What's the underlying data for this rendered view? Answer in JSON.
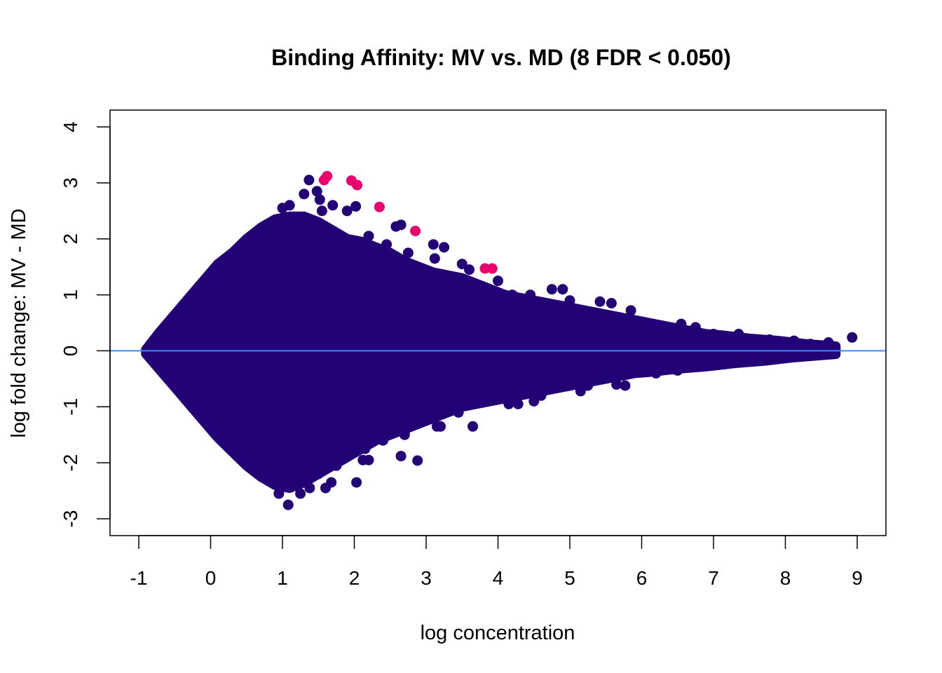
{
  "chart_data": {
    "type": "scatter",
    "title": "Binding Affinity: MV vs. MD (8 FDR < 0.050)",
    "xlabel": "log concentration",
    "ylabel": "log fold change: MV - MD",
    "xlim": [
      -1.4,
      9.4
    ],
    "ylim": [
      -3.3,
      4.3
    ],
    "x_ticks": [
      -1,
      0,
      1,
      2,
      3,
      4,
      5,
      6,
      7,
      8,
      9
    ],
    "y_ticks": [
      -3,
      -2,
      -1,
      0,
      1,
      2,
      3,
      4
    ],
    "reference_line_y": 0,
    "grid": false,
    "legend": "none",
    "colors": {
      "background_points": "#240076",
      "significant_points": "#e8006e",
      "reference_line": "#3b8cff",
      "axes": "#000000"
    },
    "envelope": {
      "x": [
        -0.9,
        -0.7,
        -0.5,
        -0.3,
        -0.1,
        0.1,
        0.3,
        0.5,
        0.7,
        0.9,
        1.1,
        1.3,
        1.5,
        1.7,
        1.9,
        2.1,
        2.3,
        2.5,
        2.7,
        2.9,
        3.1,
        3.3,
        3.5,
        3.7,
        3.9,
        4.1,
        4.3,
        4.5,
        4.7,
        4.9,
        5.1,
        5.3,
        5.5,
        5.7,
        5.9,
        6.1,
        6.3,
        6.5,
        6.7,
        6.9,
        7.1,
        7.3,
        7.5,
        7.7,
        7.9,
        8.1,
        8.3,
        8.5,
        8.7
      ],
      "upper": [
        0.02,
        0.35,
        0.65,
        0.95,
        1.25,
        1.55,
        1.75,
        2.0,
        2.2,
        2.35,
        2.4,
        2.4,
        2.3,
        2.15,
        2.0,
        1.95,
        1.85,
        1.75,
        1.6,
        1.5,
        1.4,
        1.35,
        1.3,
        1.2,
        1.1,
        1.0,
        0.95,
        0.9,
        0.85,
        0.8,
        0.75,
        0.7,
        0.65,
        0.6,
        0.55,
        0.5,
        0.45,
        0.4,
        0.35,
        0.3,
        0.28,
        0.25,
        0.22,
        0.2,
        0.18,
        0.15,
        0.12,
        0.1,
        0.08
      ],
      "lower": [
        -0.05,
        -0.35,
        -0.65,
        -0.95,
        -1.25,
        -1.55,
        -1.8,
        -2.05,
        -2.25,
        -2.4,
        -2.45,
        -2.35,
        -2.2,
        -2.05,
        -1.9,
        -1.75,
        -1.6,
        -1.5,
        -1.4,
        -1.3,
        -1.2,
        -1.1,
        -1.0,
        -0.95,
        -0.9,
        -0.85,
        -0.8,
        -0.75,
        -0.7,
        -0.65,
        -0.6,
        -0.55,
        -0.5,
        -0.45,
        -0.4,
        -0.38,
        -0.35,
        -0.32,
        -0.3,
        -0.28,
        -0.25,
        -0.22,
        -0.2,
        -0.18,
        -0.15,
        -0.12,
        -0.1,
        -0.08,
        -0.06
      ]
    },
    "points": [
      {
        "x": -0.87,
        "y": -0.02
      },
      {
        "x": 1.37,
        "y": 3.05
      },
      {
        "x": 1.48,
        "y": 2.85
      },
      {
        "x": 1.52,
        "y": 2.7
      },
      {
        "x": 1.3,
        "y": 2.8
      },
      {
        "x": 1.1,
        "y": 2.6
      },
      {
        "x": 1.0,
        "y": 2.55
      },
      {
        "x": 1.55,
        "y": 2.5
      },
      {
        "x": 1.7,
        "y": 2.6
      },
      {
        "x": 1.9,
        "y": 2.5
      },
      {
        "x": 2.02,
        "y": 2.58
      },
      {
        "x": 2.2,
        "y": 2.05
      },
      {
        "x": 2.45,
        "y": 1.9
      },
      {
        "x": 2.58,
        "y": 2.22
      },
      {
        "x": 2.65,
        "y": 2.25
      },
      {
        "x": 2.75,
        "y": 1.75
      },
      {
        "x": 3.1,
        "y": 1.9
      },
      {
        "x": 3.25,
        "y": 1.85
      },
      {
        "x": 3.12,
        "y": 1.65
      },
      {
        "x": 3.5,
        "y": 1.55
      },
      {
        "x": 3.6,
        "y": 1.45
      },
      {
        "x": 4.0,
        "y": 1.25
      },
      {
        "x": 4.2,
        "y": 1.0
      },
      {
        "x": 4.45,
        "y": 1.0
      },
      {
        "x": 4.75,
        "y": 1.1
      },
      {
        "x": 4.9,
        "y": 1.1
      },
      {
        "x": 5.0,
        "y": 0.9
      },
      {
        "x": 5.42,
        "y": 0.88
      },
      {
        "x": 5.58,
        "y": 0.85
      },
      {
        "x": 5.85,
        "y": 0.72
      },
      {
        "x": 6.55,
        "y": 0.48
      },
      {
        "x": 6.75,
        "y": 0.42
      },
      {
        "x": 7.0,
        "y": 0.3
      },
      {
        "x": 7.35,
        "y": 0.3
      },
      {
        "x": 7.78,
        "y": 0.2
      },
      {
        "x": 7.9,
        "y": 0.15
      },
      {
        "x": 8.12,
        "y": 0.18
      },
      {
        "x": 8.35,
        "y": 0.12
      },
      {
        "x": 8.6,
        "y": 0.15
      },
      {
        "x": 8.65,
        "y": 0.05
      },
      {
        "x": 8.93,
        "y": 0.24
      },
      {
        "x": 8.15,
        "y": 0.05
      },
      {
        "x": 8.3,
        "y": 0.02
      },
      {
        "x": 1.08,
        "y": -2.75
      },
      {
        "x": 0.95,
        "y": -2.55
      },
      {
        "x": 1.25,
        "y": -2.55
      },
      {
        "x": 1.38,
        "y": -2.45
      },
      {
        "x": 1.6,
        "y": -2.45
      },
      {
        "x": 1.68,
        "y": -2.35
      },
      {
        "x": 2.03,
        "y": -2.35
      },
      {
        "x": 1.5,
        "y": -2.2
      },
      {
        "x": 1.75,
        "y": -2.05
      },
      {
        "x": 2.12,
        "y": -1.95
      },
      {
        "x": 2.2,
        "y": -1.95
      },
      {
        "x": 2.65,
        "y": -1.88
      },
      {
        "x": 2.88,
        "y": -1.96
      },
      {
        "x": 2.15,
        "y": -1.75
      },
      {
        "x": 2.4,
        "y": -1.6
      },
      {
        "x": 2.7,
        "y": -1.5
      },
      {
        "x": 3.15,
        "y": -1.35
      },
      {
        "x": 3.2,
        "y": -1.35
      },
      {
        "x": 3.65,
        "y": -1.35
      },
      {
        "x": 3.45,
        "y": -1.1
      },
      {
        "x": 4.15,
        "y": -0.95
      },
      {
        "x": 4.28,
        "y": -0.95
      },
      {
        "x": 4.5,
        "y": -0.9
      },
      {
        "x": 4.6,
        "y": -0.8
      },
      {
        "x": 5.15,
        "y": -0.72
      },
      {
        "x": 5.25,
        "y": -0.62
      },
      {
        "x": 5.65,
        "y": -0.6
      },
      {
        "x": 5.77,
        "y": -0.62
      },
      {
        "x": 6.2,
        "y": -0.4
      },
      {
        "x": 6.5,
        "y": -0.35
      },
      {
        "x": 6.9,
        "y": -0.25
      },
      {
        "x": 7.3,
        "y": -0.2
      },
      {
        "x": 7.6,
        "y": -0.12
      },
      {
        "x": 7.95,
        "y": -0.08
      },
      {
        "x": 8.05,
        "y": -0.06
      },
      {
        "x": 8.22,
        "y": -0.02
      }
    ],
    "significant_points": [
      {
        "x": 1.58,
        "y": 3.05
      },
      {
        "x": 1.62,
        "y": 3.12
      },
      {
        "x": 1.96,
        "y": 3.04
      },
      {
        "x": 2.04,
        "y": 2.96
      },
      {
        "x": 2.35,
        "y": 2.57
      },
      {
        "x": 2.85,
        "y": 2.14
      },
      {
        "x": 3.82,
        "y": 1.47
      },
      {
        "x": 3.92,
        "y": 1.47
      }
    ]
  }
}
